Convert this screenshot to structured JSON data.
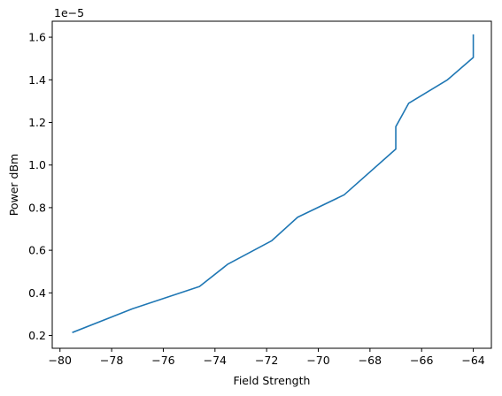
{
  "chart_data": {
    "type": "line",
    "title": "",
    "xlabel": "Field Strength",
    "ylabel": "Power dBm",
    "y_offset_label": "1e−5",
    "xlim": [
      -80.3,
      -63.3
    ],
    "ylim": [
      0.14,
      1.675
    ],
    "x_ticks": [
      -80,
      -78,
      -76,
      -74,
      -72,
      -70,
      -68,
      -66,
      -64
    ],
    "x_tick_labels": [
      "−80",
      "−78",
      "−76",
      "−74",
      "−72",
      "−70",
      "−68",
      "−66",
      "−64"
    ],
    "y_ticks": [
      0.2,
      0.4,
      0.6,
      0.8,
      1.0,
      1.2,
      1.4,
      1.6
    ],
    "y_tick_labels": [
      "0.2",
      "0.4",
      "0.6",
      "0.8",
      "1.0",
      "1.2",
      "1.4",
      "1.6"
    ],
    "grid": false,
    "series": [
      {
        "color": "#1f77b4",
        "x": [
          -79.5,
          -77.2,
          -74.6,
          -73.5,
          -71.8,
          -70.8,
          -69.0,
          -67.0,
          -67.0,
          -66.5,
          -65.0,
          -64.0,
          -64.0
        ],
        "y": [
          0.215,
          0.325,
          0.43,
          0.535,
          0.645,
          0.755,
          0.86,
          1.075,
          1.18,
          1.29,
          1.4,
          1.505,
          1.61
        ]
      }
    ]
  }
}
